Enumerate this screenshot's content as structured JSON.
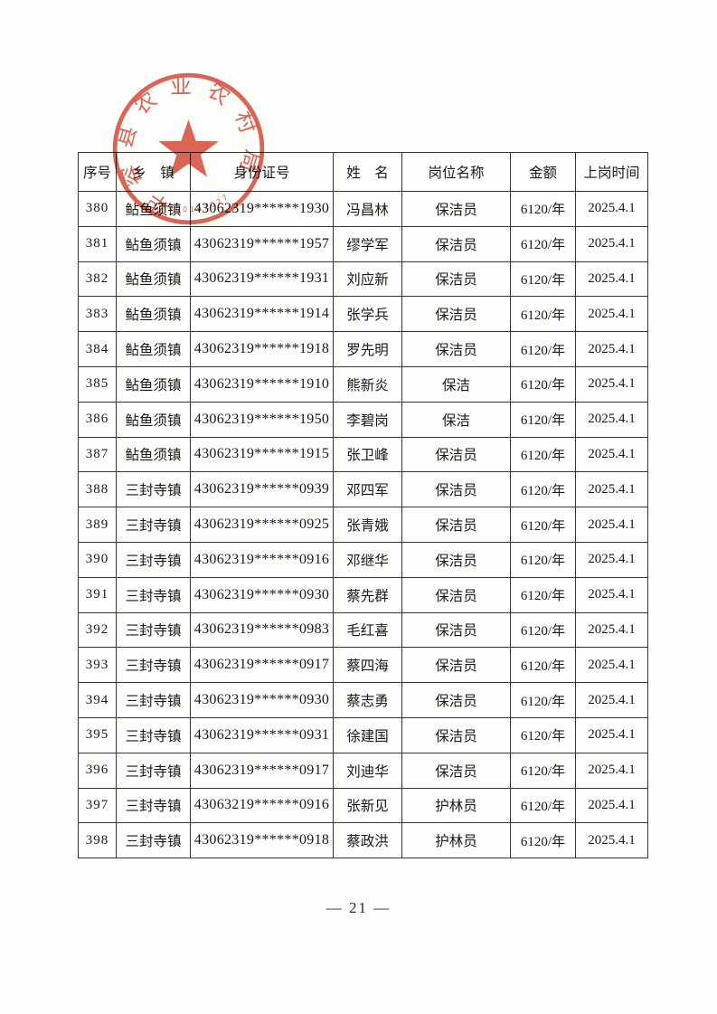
{
  "page": {
    "number_label": "— 21 —"
  },
  "stamp": {
    "arc_text": "华容县农业农村局",
    "code": "4300197027",
    "color": "#d8503e"
  },
  "table": {
    "columns": [
      "序号",
      "乡　镇",
      "身份证号",
      "姓　名",
      "岗位名称",
      "金额",
      "上岗时间"
    ],
    "rows": [
      [
        "380",
        "鲇鱼须镇",
        "43062319******1930",
        "冯昌林",
        "保洁员",
        "6120/年",
        "2025.4.1"
      ],
      [
        "381",
        "鲇鱼须镇",
        "43062319******1957",
        "缪学军",
        "保洁员",
        "6120/年",
        "2025.4.1"
      ],
      [
        "382",
        "鲇鱼须镇",
        "43062319******1931",
        "刘应新",
        "保洁员",
        "6120/年",
        "2025.4.1"
      ],
      [
        "383",
        "鲇鱼须镇",
        "43062319******1914",
        "张学兵",
        "保洁员",
        "6120/年",
        "2025.4.1"
      ],
      [
        "384",
        "鲇鱼须镇",
        "43062319******1918",
        "罗先明",
        "保洁员",
        "6120/年",
        "2025.4.1"
      ],
      [
        "385",
        "鲇鱼须镇",
        "43062319******1910",
        "熊新炎",
        "保洁",
        "6120/年",
        "2025.4.1"
      ],
      [
        "386",
        "鲇鱼须镇",
        "43062319******1950",
        "李碧岗",
        "保洁",
        "6120/年",
        "2025.4.1"
      ],
      [
        "387",
        "鲇鱼须镇",
        "43062319******1915",
        "张卫峰",
        "保洁员",
        "6120/年",
        "2025.4.1"
      ],
      [
        "388",
        "三封寺镇",
        "43062319******0939",
        "邓四军",
        "保洁员",
        "6120/年",
        "2025.4.1"
      ],
      [
        "389",
        "三封寺镇",
        "43062319******0925",
        "张青娥",
        "保洁员",
        "6120/年",
        "2025.4.1"
      ],
      [
        "390",
        "三封寺镇",
        "43062319******0916",
        "邓继华",
        "保洁员",
        "6120/年",
        "2025.4.1"
      ],
      [
        "391",
        "三封寺镇",
        "43062319******0930",
        "蔡先群",
        "保洁员",
        "6120/年",
        "2025.4.1"
      ],
      [
        "392",
        "三封寺镇",
        "43062319******0983",
        "毛红喜",
        "保洁员",
        "6120/年",
        "2025.4.1"
      ],
      [
        "393",
        "三封寺镇",
        "43062319******0917",
        "蔡四海",
        "保洁员",
        "6120/年",
        "2025.4.1"
      ],
      [
        "394",
        "三封寺镇",
        "43062319******0930",
        "蔡志勇",
        "保洁员",
        "6120/年",
        "2025.4.1"
      ],
      [
        "395",
        "三封寺镇",
        "43062319******0931",
        "徐建国",
        "保洁员",
        "6120/年",
        "2025.4.1"
      ],
      [
        "396",
        "三封寺镇",
        "43062319******0917",
        "刘迪华",
        "保洁员",
        "6120/年",
        "2025.4.1"
      ],
      [
        "397",
        "三封寺镇",
        "43063219******0916",
        "张新见",
        "护林员",
        "6120/年",
        "2025.4.1"
      ],
      [
        "398",
        "三封寺镇",
        "43062319******0918",
        "蔡政洪",
        "护林员",
        "6120/年",
        "2025.4.1"
      ]
    ]
  }
}
